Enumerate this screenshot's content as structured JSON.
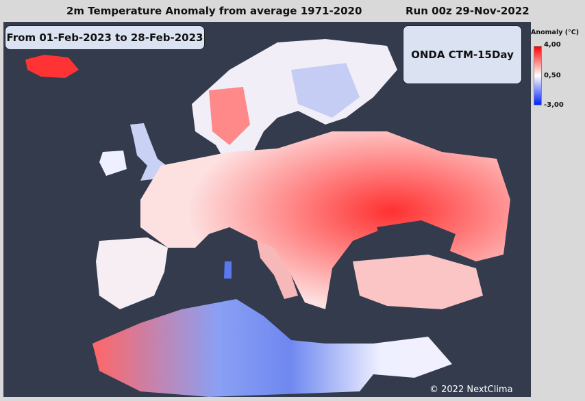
{
  "header": {
    "title": "2m Temperature Anomaly from average 1971-2020",
    "run": "Run 00z 29-Nov-2022"
  },
  "period": "From 01-Feb-2023 to 28-Feb-2023",
  "model": "ONDA CTM-15Day",
  "legend": {
    "title": "Anomaly (°C)",
    "max": "4,00",
    "mid": "0,50",
    "min": "-3,00",
    "colors": {
      "max": "#ff0000",
      "mid": "#ffffff",
      "min": "#0022ff"
    }
  },
  "copyright": "© 2022 NextClima",
  "colors": {
    "background": "#333b4d",
    "panel": "#d9d9d9"
  }
}
